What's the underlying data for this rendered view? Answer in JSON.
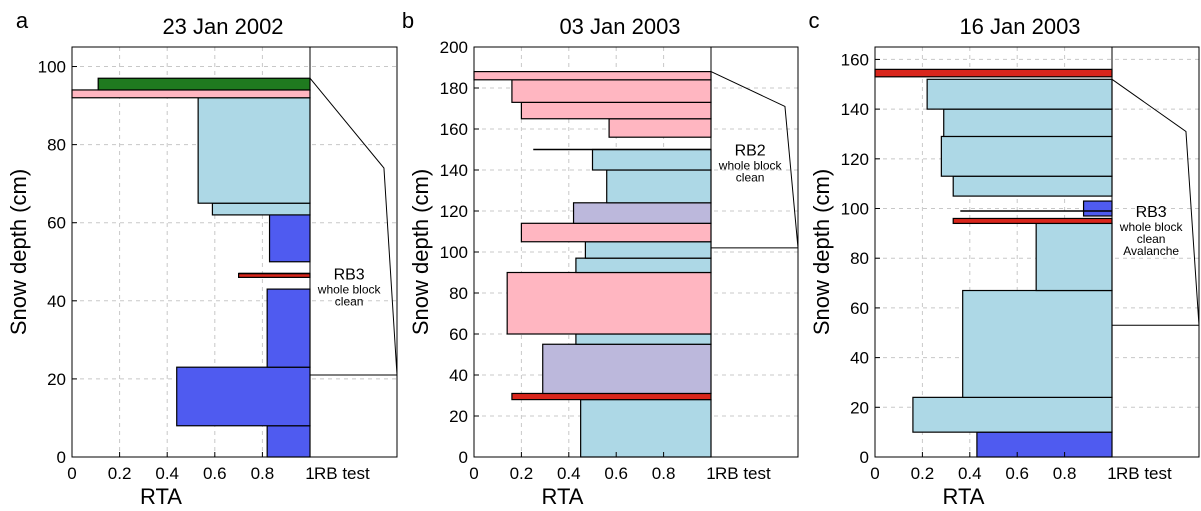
{
  "colors": {
    "light_blue": "#add8e6",
    "dark_blue": "#4f5bf0",
    "pink": "#ffb6c1",
    "lavender": "#bcb8dc",
    "red": "#d9261c",
    "green": "#1f7a1f"
  },
  "chart_data": [
    {
      "type": "bar",
      "panel_letter": "a",
      "title": "23 Jan 2002",
      "xlabel": "RTA",
      "ylabel": "Snow depth (cm)",
      "xlim": [
        0,
        1
      ],
      "ylim": [
        0,
        105
      ],
      "xticks": [
        "0",
        "0.2",
        "0.4",
        "0.6",
        "0.8",
        "1"
      ],
      "yticks": [
        0,
        20,
        40,
        60,
        80,
        100
      ],
      "rb_label": "RB test",
      "layers": [
        {
          "bottom": 0,
          "top": 8,
          "rta": 0.82,
          "color": "dark_blue"
        },
        {
          "bottom": 8,
          "top": 23,
          "rta": 0.44,
          "color": "dark_blue"
        },
        {
          "bottom": 23,
          "top": 43,
          "rta": 0.82,
          "color": "dark_blue"
        },
        {
          "bottom": 46,
          "top": 47,
          "rta": 0.7,
          "color": "red"
        },
        {
          "bottom": 50,
          "top": 62,
          "rta": 0.83,
          "color": "dark_blue"
        },
        {
          "bottom": 62,
          "top": 65,
          "rta": 0.59,
          "color": "light_blue"
        },
        {
          "bottom": 65,
          "top": 92,
          "rta": 0.53,
          "color": "light_blue"
        },
        {
          "bottom": 92,
          "top": 94,
          "rta": 0.0,
          "color": "pink"
        },
        {
          "bottom": 94,
          "top": 97,
          "rta": 0.11,
          "color": "green"
        }
      ],
      "rb_tests": [
        {
          "label": "RB3",
          "sublabels": [
            "whole block",
            "clean"
          ],
          "top": 97,
          "bottom": 21,
          "peak_depth": 74,
          "fracture_depth": 47,
          "line_start": 0.7
        }
      ]
    },
    {
      "type": "bar",
      "panel_letter": "b",
      "title": "03 Jan 2003",
      "xlabel": "RTA",
      "ylabel": "Snow depth (cm)",
      "xlim": [
        0,
        1
      ],
      "ylim": [
        0,
        200
      ],
      "xticks": [
        "0",
        "0.2",
        "0.4",
        "0.6",
        "0.8",
        "1"
      ],
      "yticks": [
        0,
        20,
        40,
        60,
        80,
        100,
        120,
        140,
        160,
        180,
        200
      ],
      "rb_label": "RB test",
      "layers": [
        {
          "bottom": 0,
          "top": 28,
          "rta": 0.45,
          "color": "light_blue"
        },
        {
          "bottom": 28,
          "top": 31,
          "rta": 0.16,
          "color": "red"
        },
        {
          "bottom": 31,
          "top": 55,
          "rta": 0.29,
          "color": "lavender"
        },
        {
          "bottom": 55,
          "top": 60,
          "rta": 0.43,
          "color": "light_blue"
        },
        {
          "bottom": 60,
          "top": 90,
          "rta": 0.14,
          "color": "pink"
        },
        {
          "bottom": 90,
          "top": 97,
          "rta": 0.43,
          "color": "light_blue"
        },
        {
          "bottom": 97,
          "top": 105,
          "rta": 0.47,
          "color": "light_blue"
        },
        {
          "bottom": 105,
          "top": 114,
          "rta": 0.2,
          "color": "pink"
        },
        {
          "bottom": 114,
          "top": 124,
          "rta": 0.42,
          "color": "lavender"
        },
        {
          "bottom": 124,
          "top": 140,
          "rta": 0.56,
          "color": "light_blue"
        },
        {
          "bottom": 140,
          "top": 150,
          "rta": 0.5,
          "color": "light_blue"
        },
        {
          "bottom": 156,
          "top": 165,
          "rta": 0.57,
          "color": "pink"
        },
        {
          "bottom": 165,
          "top": 173,
          "rta": 0.2,
          "color": "pink"
        },
        {
          "bottom": 173,
          "top": 184,
          "rta": 0.16,
          "color": "pink"
        },
        {
          "bottom": 184,
          "top": 188,
          "rta": 0.0,
          "color": "pink"
        }
      ],
      "rb_tests": [
        {
          "label": "RB2",
          "sublabels": [
            "whole block",
            "clean"
          ],
          "top": 188,
          "bottom": 102,
          "peak_depth": 171,
          "fracture_depth": 150,
          "line_start": 0.25
        }
      ]
    },
    {
      "type": "bar",
      "panel_letter": "c",
      "title": "16 Jan 2003",
      "xlabel": "RTA",
      "ylabel": "Snow depth (cm)",
      "xlim": [
        0,
        1
      ],
      "ylim": [
        0,
        165
      ],
      "xticks": [
        "0",
        "0.2",
        "0.4",
        "0.6",
        "0.8",
        "1"
      ],
      "yticks": [
        0,
        20,
        40,
        60,
        80,
        100,
        120,
        140,
        160
      ],
      "rb_label": "RB test",
      "layers": [
        {
          "bottom": 0,
          "top": 10,
          "rta": 0.43,
          "color": "dark_blue"
        },
        {
          "bottom": 10,
          "top": 24,
          "rta": 0.16,
          "color": "light_blue"
        },
        {
          "bottom": 24,
          "top": 67,
          "rta": 0.37,
          "color": "light_blue"
        },
        {
          "bottom": 67,
          "top": 94,
          "rta": 0.68,
          "color": "light_blue"
        },
        {
          "bottom": 94,
          "top": 96,
          "rta": 0.33,
          "color": "red"
        },
        {
          "bottom": 97,
          "top": 103,
          "rta": 0.88,
          "color": "dark_blue"
        },
        {
          "bottom": 105,
          "top": 113,
          "rta": 0.33,
          "color": "light_blue"
        },
        {
          "bottom": 113,
          "top": 129,
          "rta": 0.28,
          "color": "light_blue"
        },
        {
          "bottom": 129,
          "top": 140,
          "rta": 0.29,
          "color": "light_blue"
        },
        {
          "bottom": 140,
          "top": 152,
          "rta": 0.22,
          "color": "light_blue"
        },
        {
          "bottom": 153,
          "top": 156,
          "rta": 0.0,
          "color": "red"
        }
      ],
      "rb_tests": [
        {
          "label": "RB3",
          "sublabels": [
            "whole block",
            "clean",
            "Avalanche"
          ],
          "top": 152,
          "bottom": 53,
          "peak_depth": 131,
          "fracture_depth": 99,
          "line_start": 0.36
        }
      ]
    }
  ]
}
